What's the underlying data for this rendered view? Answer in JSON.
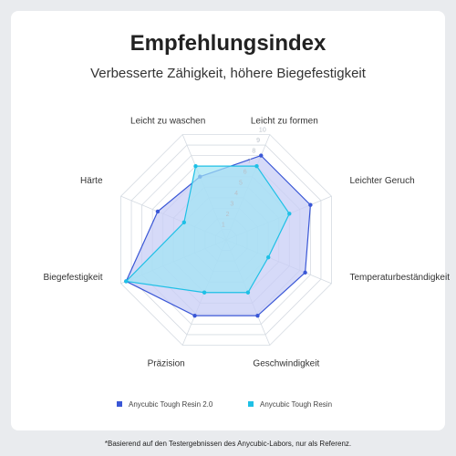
{
  "title": "Empfehlungsindex",
  "subtitle": "Verbesserte Zähigkeit, höhere Biegefestigkeit",
  "footnote": "*Basierend auf den Testergebnissen des Anycubic-Labors, nur als Referenz.",
  "chart_data": {
    "type": "radar",
    "categories": [
      "Leicht zu formen",
      "Leichter Geruch",
      "Temperaturbeständigkeit",
      "Geschwindigkeit",
      "Präzision",
      "Biegefestigkeit",
      "Härte",
      "Leicht zu waschen"
    ],
    "ticks": [
      "1",
      "2",
      "3",
      "4",
      "5",
      "6",
      "7",
      "8",
      "9",
      "10"
    ],
    "range": [
      0,
      10
    ],
    "series": [
      {
        "name": "Anycubic Tough Resin 2.0",
        "values": [
          8,
          8,
          7.5,
          7.2,
          7.2,
          9.5,
          6.5,
          6
        ],
        "color": "#3a57d6",
        "fill": "#c8cdf5"
      },
      {
        "name": "Anycubic Tough Resin",
        "values": [
          7,
          6,
          4,
          5,
          5,
          9.5,
          4,
          7
        ],
        "color": "#1ec0e6",
        "fill": "#9fe4f4"
      }
    ],
    "legend_position": "bottom"
  }
}
